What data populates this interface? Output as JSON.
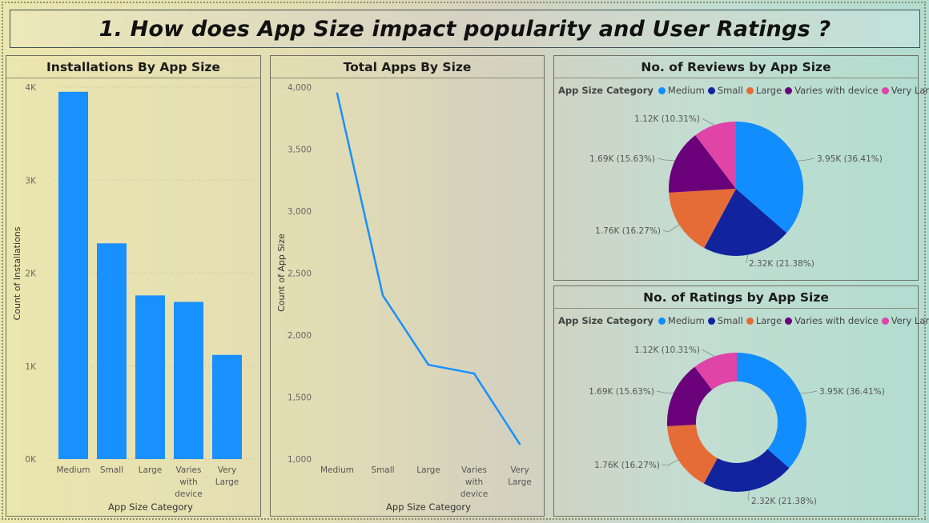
{
  "title": "1. How does App Size impact popularity and User Ratings ?",
  "colors": {
    "bar": "#1890ff",
    "line": "#1890ff",
    "medium": "#118dff",
    "small": "#12239e",
    "large": "#e66c37",
    "varies": "#6b007b",
    "very_large": "#e044a7"
  },
  "chart_data": [
    {
      "type": "bar",
      "title": "Installations By App Size",
      "xlabel": "App Size Category",
      "ylabel": "Count of Installations",
      "categories": [
        "Medium",
        "Small",
        "Large",
        "Varies with device",
        "Very Large"
      ],
      "category_lines": [
        [
          "Medium"
        ],
        [
          "Small"
        ],
        [
          "Large"
        ],
        [
          "Varies",
          "with",
          "device"
        ],
        [
          "Very",
          "Large"
        ]
      ],
      "values": [
        3950,
        2320,
        1760,
        1690,
        1120
      ],
      "ylim": [
        0,
        4000
      ],
      "yticks": [
        0,
        1000,
        2000,
        3000,
        4000
      ],
      "ytick_labels": [
        "0K",
        "1K",
        "2K",
        "3K",
        "4K"
      ],
      "grid": true
    },
    {
      "type": "line",
      "title": "Total Apps By Size",
      "xlabel": "App Size Category",
      "ylabel": "Count of App Size",
      "categories": [
        "Medium",
        "Small",
        "Large",
        "Varies with device",
        "Very Large"
      ],
      "category_lines": [
        [
          "Medium"
        ],
        [
          "Small"
        ],
        [
          "Large"
        ],
        [
          "Varies",
          "with",
          "device"
        ],
        [
          "Very",
          "Large"
        ]
      ],
      "values": [
        3950,
        2320,
        1760,
        1690,
        1120
      ],
      "ylim": [
        1000,
        4000
      ],
      "yticks": [
        1000,
        1500,
        2000,
        2500,
        3000,
        3500,
        4000
      ],
      "ytick_labels": [
        "1,000",
        "1,500",
        "2,000",
        "2,500",
        "3,000",
        "3,500",
        "4,000"
      ],
      "grid": false
    },
    {
      "type": "pie",
      "title": "No. of Reviews by App Size",
      "legend_title": "App Size Category",
      "legend_position": "top-left",
      "categories": [
        "Medium",
        "Small",
        "Large",
        "Varies with device",
        "Very Large"
      ],
      "values": [
        3950,
        2320,
        1760,
        1690,
        1120
      ],
      "percents": [
        36.41,
        21.38,
        16.27,
        15.63,
        10.31
      ],
      "data_labels": [
        "3.95K (36.41%)",
        "2.32K (21.38%)",
        "1.76K (16.27%)",
        "1.69K (15.63%)",
        "1.12K (10.31%)"
      ]
    },
    {
      "type": "pie",
      "donut": true,
      "title": "No. of Ratings by App Size",
      "legend_title": "App Size Category",
      "legend_position": "top-left",
      "categories": [
        "Medium",
        "Small",
        "Large",
        "Varies with device",
        "Very Large"
      ],
      "values": [
        3950,
        2320,
        1760,
        1690,
        1120
      ],
      "percents": [
        36.41,
        21.38,
        16.27,
        15.63,
        10.31
      ],
      "data_labels": [
        "3.95K (36.41%)",
        "2.32K (21.38%)",
        "1.76K (16.27%)",
        "1.69K (15.63%)",
        "1.12K (10.31%)"
      ]
    }
  ]
}
